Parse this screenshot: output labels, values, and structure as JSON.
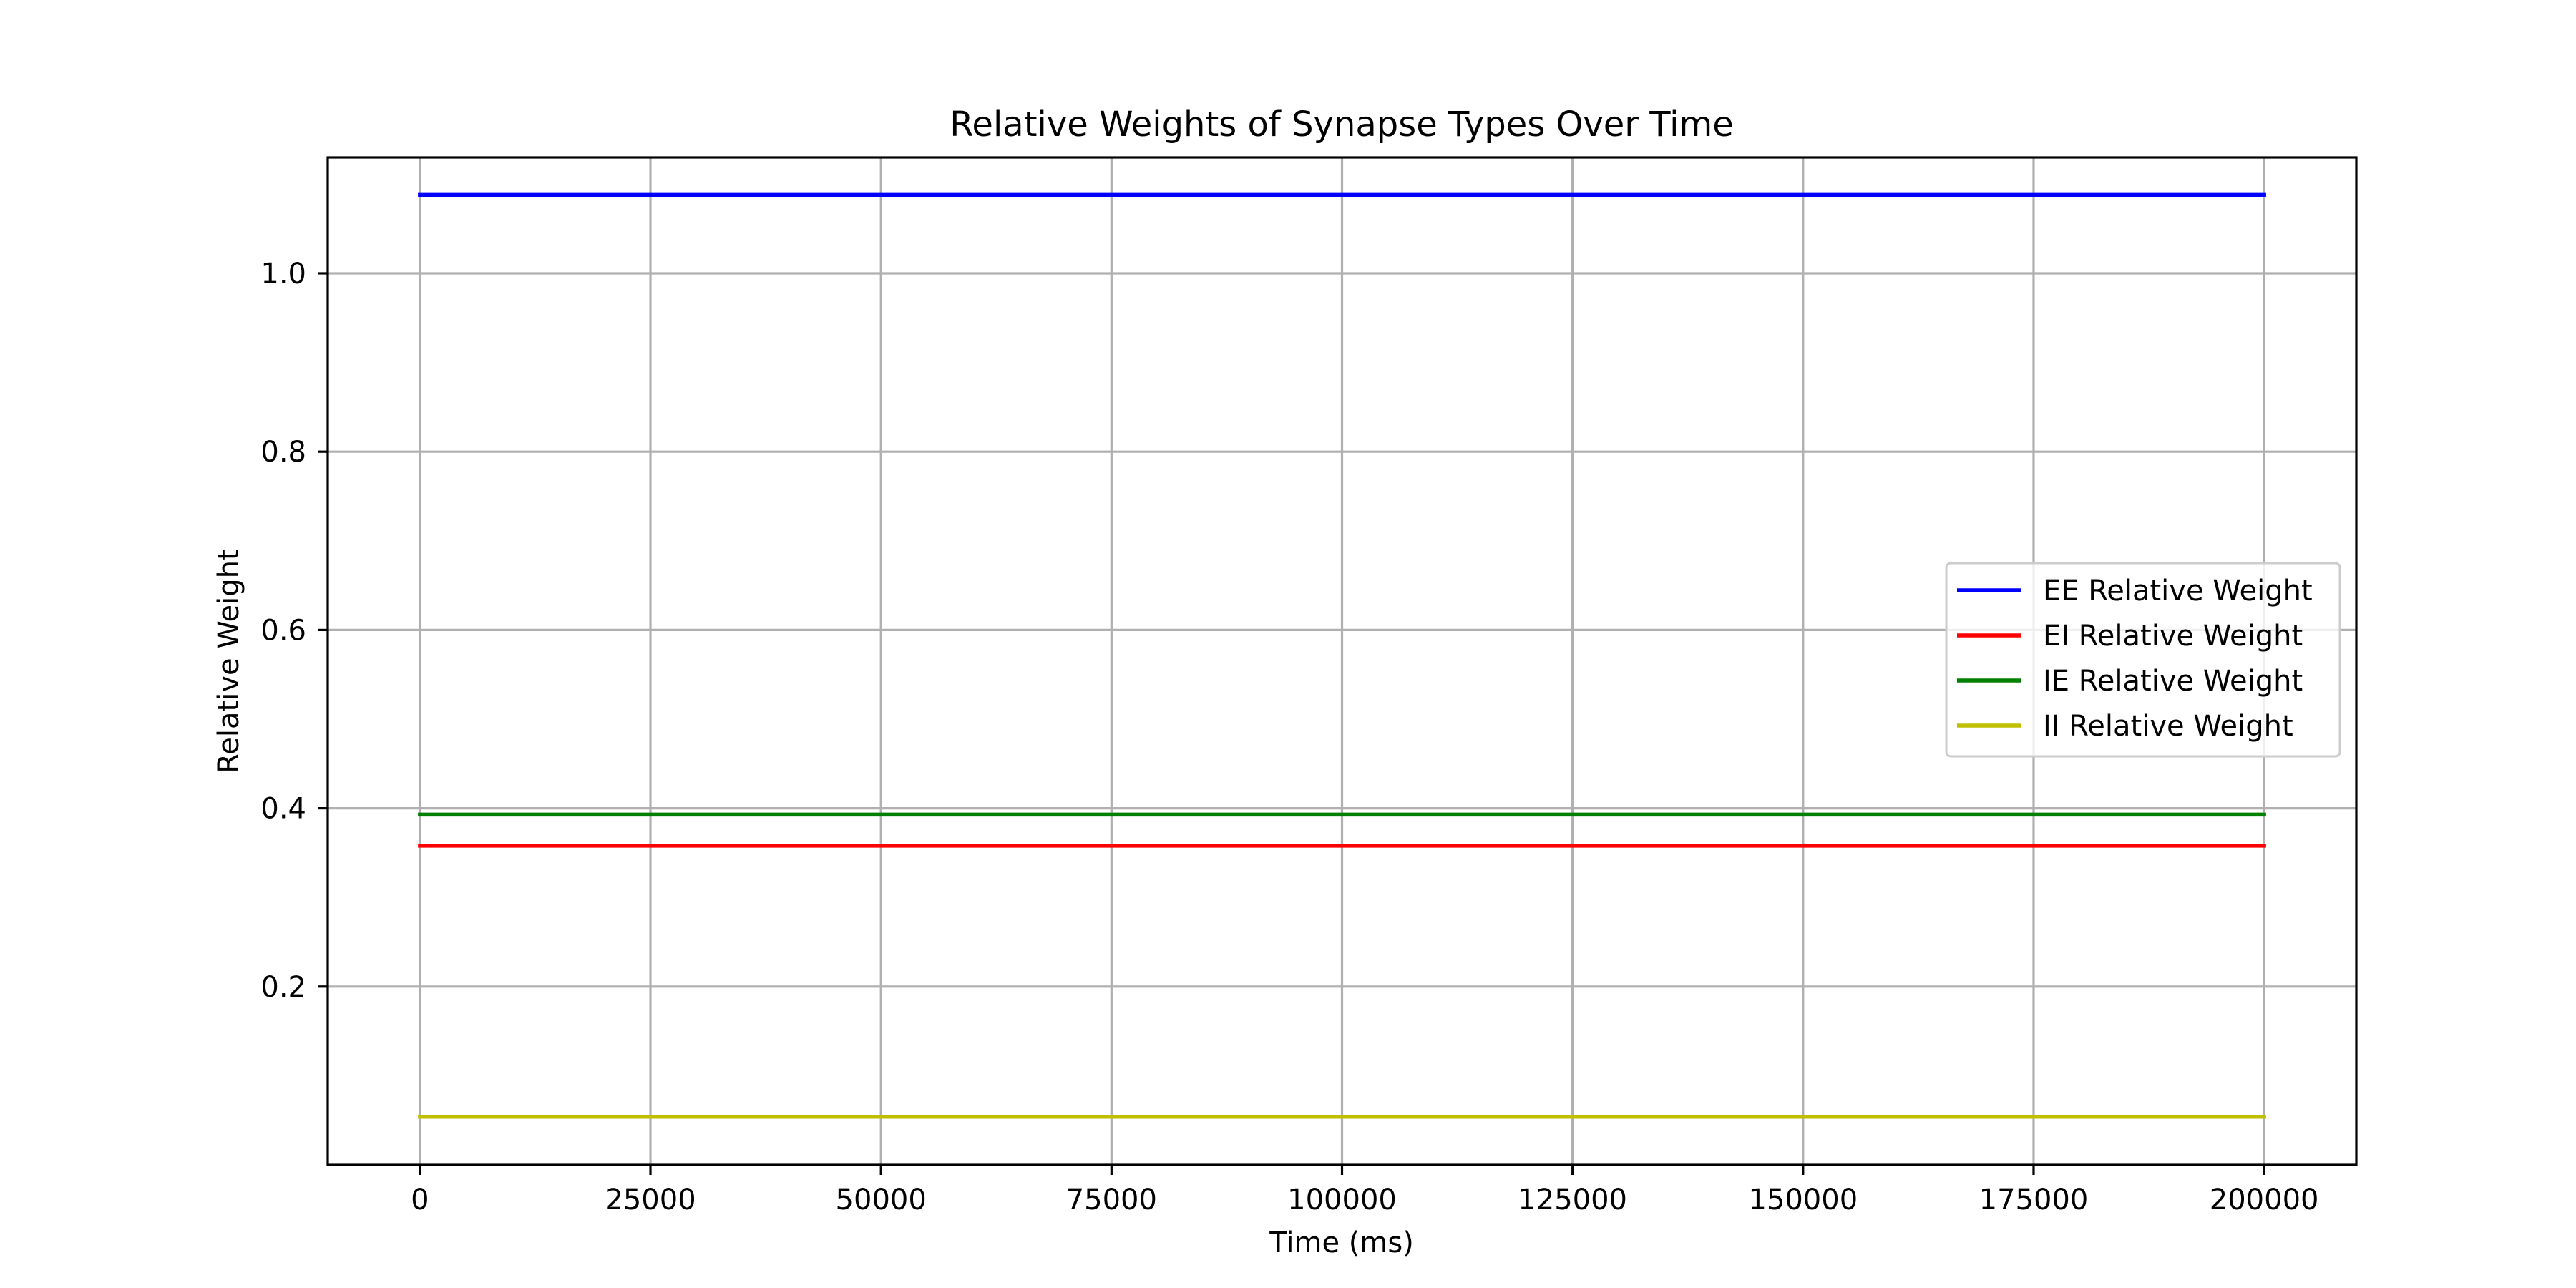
{
  "chart_data": {
    "type": "line",
    "title": "Relative Weights of Synapse Types Over Time",
    "xlabel": "Time (ms)",
    "ylabel": "Relative Weight",
    "x": [
      0,
      200000
    ],
    "xlim": [
      -10000,
      210000
    ],
    "ylim": [
      0.0,
      1.13
    ],
    "xticks": [
      0,
      25000,
      50000,
      75000,
      100000,
      125000,
      150000,
      175000,
      200000
    ],
    "xtick_labels": [
      "0",
      "25000",
      "50000",
      "75000",
      "100000",
      "125000",
      "150000",
      "175000",
      "200000"
    ],
    "yticks": [
      0.2,
      0.4,
      0.6,
      0.8,
      1.0
    ],
    "ytick_labels": [
      "0.2",
      "0.4",
      "0.6",
      "0.8",
      "1.0"
    ],
    "grid": true,
    "legend_position": "center-right",
    "series": [
      {
        "name": "EE Relative Weight",
        "color": "#0000ff",
        "values": [
          1.088,
          1.088
        ]
      },
      {
        "name": "EI Relative Weight",
        "color": "#ff0000",
        "values": [
          0.358,
          0.358
        ]
      },
      {
        "name": "IE Relative Weight",
        "color": "#008000",
        "values": [
          0.393,
          0.393
        ]
      },
      {
        "name": "II Relative Weight",
        "color": "#bfbf00",
        "values": [
          0.054,
          0.054
        ]
      }
    ]
  }
}
